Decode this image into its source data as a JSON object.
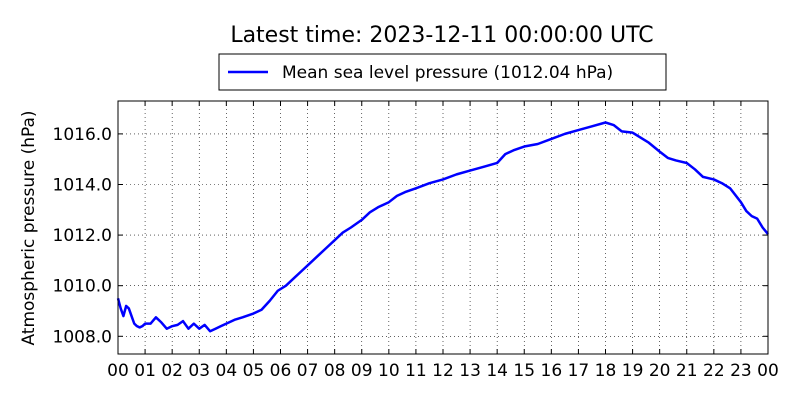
{
  "chart_data": {
    "type": "line",
    "title": "Latest time: 2023-12-11 00:00:00 UTC",
    "xlabel": "",
    "ylabel": "Atmospheric pressure (hPa)",
    "x_unit": "hour",
    "xlim": [
      0,
      24
    ],
    "ylim": [
      1007.3,
      1017.3
    ],
    "x_ticks": [
      0,
      1,
      2,
      3,
      4,
      5,
      6,
      7,
      8,
      9,
      10,
      11,
      12,
      13,
      14,
      15,
      16,
      17,
      18,
      19,
      20,
      21,
      22,
      23,
      24
    ],
    "x_tick_labels": [
      "00",
      "01",
      "02",
      "03",
      "04",
      "05",
      "06",
      "07",
      "08",
      "09",
      "10",
      "11",
      "12",
      "13",
      "14",
      "15",
      "16",
      "17",
      "18",
      "19",
      "20",
      "21",
      "22",
      "23",
      "00"
    ],
    "y_ticks": [
      1008.0,
      1010.0,
      1012.0,
      1014.0,
      1016.0
    ],
    "y_tick_labels": [
      "1008.0",
      "1010.0",
      "1012.0",
      "1014.0",
      "1016.0"
    ],
    "grid": true,
    "legend_position": "top-center",
    "series": [
      {
        "name": "Mean sea level pressure (1012.04 hPa)",
        "color": "#0000ff",
        "x": [
          0,
          0.1,
          0.2,
          0.3,
          0.4,
          0.5,
          0.6,
          0.7,
          0.8,
          0.9,
          1.0,
          1.2,
          1.4,
          1.6,
          1.8,
          2.0,
          2.2,
          2.4,
          2.6,
          2.8,
          3.0,
          3.2,
          3.4,
          3.6,
          3.8,
          4.0,
          4.3,
          4.6,
          5.0,
          5.3,
          5.6,
          5.9,
          6.2,
          6.5,
          6.8,
          7.1,
          7.4,
          7.7,
          8.0,
          8.3,
          8.6,
          9.0,
          9.3,
          9.6,
          10.0,
          10.3,
          10.6,
          11.0,
          11.5,
          12.0,
          12.5,
          13.0,
          13.5,
          14.0,
          14.3,
          14.6,
          15.0,
          15.5,
          16.0,
          16.5,
          17.0,
          17.5,
          18.0,
          18.3,
          18.6,
          19.0,
          19.3,
          19.6,
          20.0,
          20.3,
          20.6,
          21.0,
          21.3,
          21.6,
          22.0,
          22.3,
          22.6,
          23.0,
          23.2,
          23.4,
          23.6,
          23.8,
          24.0
        ],
        "values": [
          1009.5,
          1009.1,
          1008.8,
          1009.2,
          1009.1,
          1008.8,
          1008.5,
          1008.4,
          1008.35,
          1008.4,
          1008.5,
          1008.5,
          1008.75,
          1008.55,
          1008.3,
          1008.4,
          1008.45,
          1008.6,
          1008.3,
          1008.5,
          1008.3,
          1008.45,
          1008.2,
          1008.3,
          1008.4,
          1008.5,
          1008.65,
          1008.75,
          1008.9,
          1009.05,
          1009.4,
          1009.8,
          1010.0,
          1010.3,
          1010.6,
          1010.9,
          1011.2,
          1011.5,
          1011.8,
          1012.1,
          1012.3,
          1012.6,
          1012.9,
          1013.1,
          1013.3,
          1013.55,
          1013.7,
          1013.85,
          1014.05,
          1014.2,
          1014.4,
          1014.55,
          1014.7,
          1014.85,
          1015.2,
          1015.35,
          1015.5,
          1015.6,
          1015.8,
          1016.0,
          1016.15,
          1016.3,
          1016.45,
          1016.35,
          1016.1,
          1016.05,
          1015.85,
          1015.65,
          1015.3,
          1015.05,
          1014.95,
          1014.85,
          1014.6,
          1014.3,
          1014.2,
          1014.05,
          1013.85,
          1013.3,
          1012.95,
          1012.75,
          1012.65,
          1012.3,
          1012.04
        ]
      }
    ]
  }
}
